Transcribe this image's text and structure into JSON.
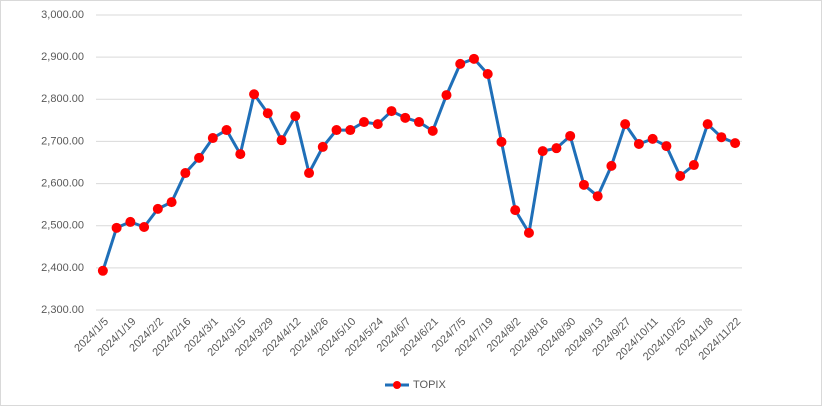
{
  "chart_data": {
    "type": "line",
    "categories": [
      "2024/1/5",
      null,
      "2024/1/19",
      null,
      "2024/2/2",
      null,
      "2024/2/16",
      null,
      "2024/3/1",
      null,
      "2024/3/15",
      null,
      "2024/3/29",
      null,
      "2024/4/12",
      null,
      "2024/4/26",
      null,
      "2024/5/10",
      null,
      "2024/5/24",
      null,
      "2024/6/7",
      null,
      "2024/6/21",
      null,
      "2024/7/5",
      null,
      "2024/7/19",
      null,
      "2024/8/2",
      null,
      "2024/8/16",
      null,
      "2024/8/30",
      null,
      "2024/9/13",
      null,
      "2024/9/27",
      null,
      "2024/10/11",
      null,
      "2024/10/25",
      null,
      "2024/11/8",
      null,
      "2024/11/22"
    ],
    "series": [
      {
        "name": "TOPIX",
        "color": "#1f6fb8",
        "marker_color": "#ff0000",
        "values": [
          2393,
          2495,
          2509,
          2497,
          2540,
          2556,
          2625,
          2661,
          2708,
          2727,
          2670,
          2812,
          2767,
          2703,
          2760,
          2625,
          2687,
          2727,
          2727,
          2746,
          2741,
          2772,
          2756,
          2746,
          2725,
          2810,
          2884,
          2896,
          2860,
          2699,
          2537,
          2483,
          2677,
          2684,
          2713,
          2597,
          2570,
          2642,
          2741,
          2694,
          2706,
          2689,
          2618,
          2644,
          2741,
          2710,
          2696
        ]
      }
    ],
    "ylim": [
      2300,
      3000
    ],
    "yticks": [
      {
        "value": 2300,
        "label": "2,300.00"
      },
      {
        "value": 2400,
        "label": "2,400.00"
      },
      {
        "value": 2500,
        "label": "2,500.00"
      },
      {
        "value": 2600,
        "label": "2,600.00"
      },
      {
        "value": 2700,
        "label": "2,700.00"
      },
      {
        "value": 2800,
        "label": "2,800.00"
      },
      {
        "value": 2900,
        "label": "2,900.00"
      },
      {
        "value": 3000,
        "label": "3,000.00"
      }
    ],
    "grid": true,
    "legend": "bottom"
  }
}
